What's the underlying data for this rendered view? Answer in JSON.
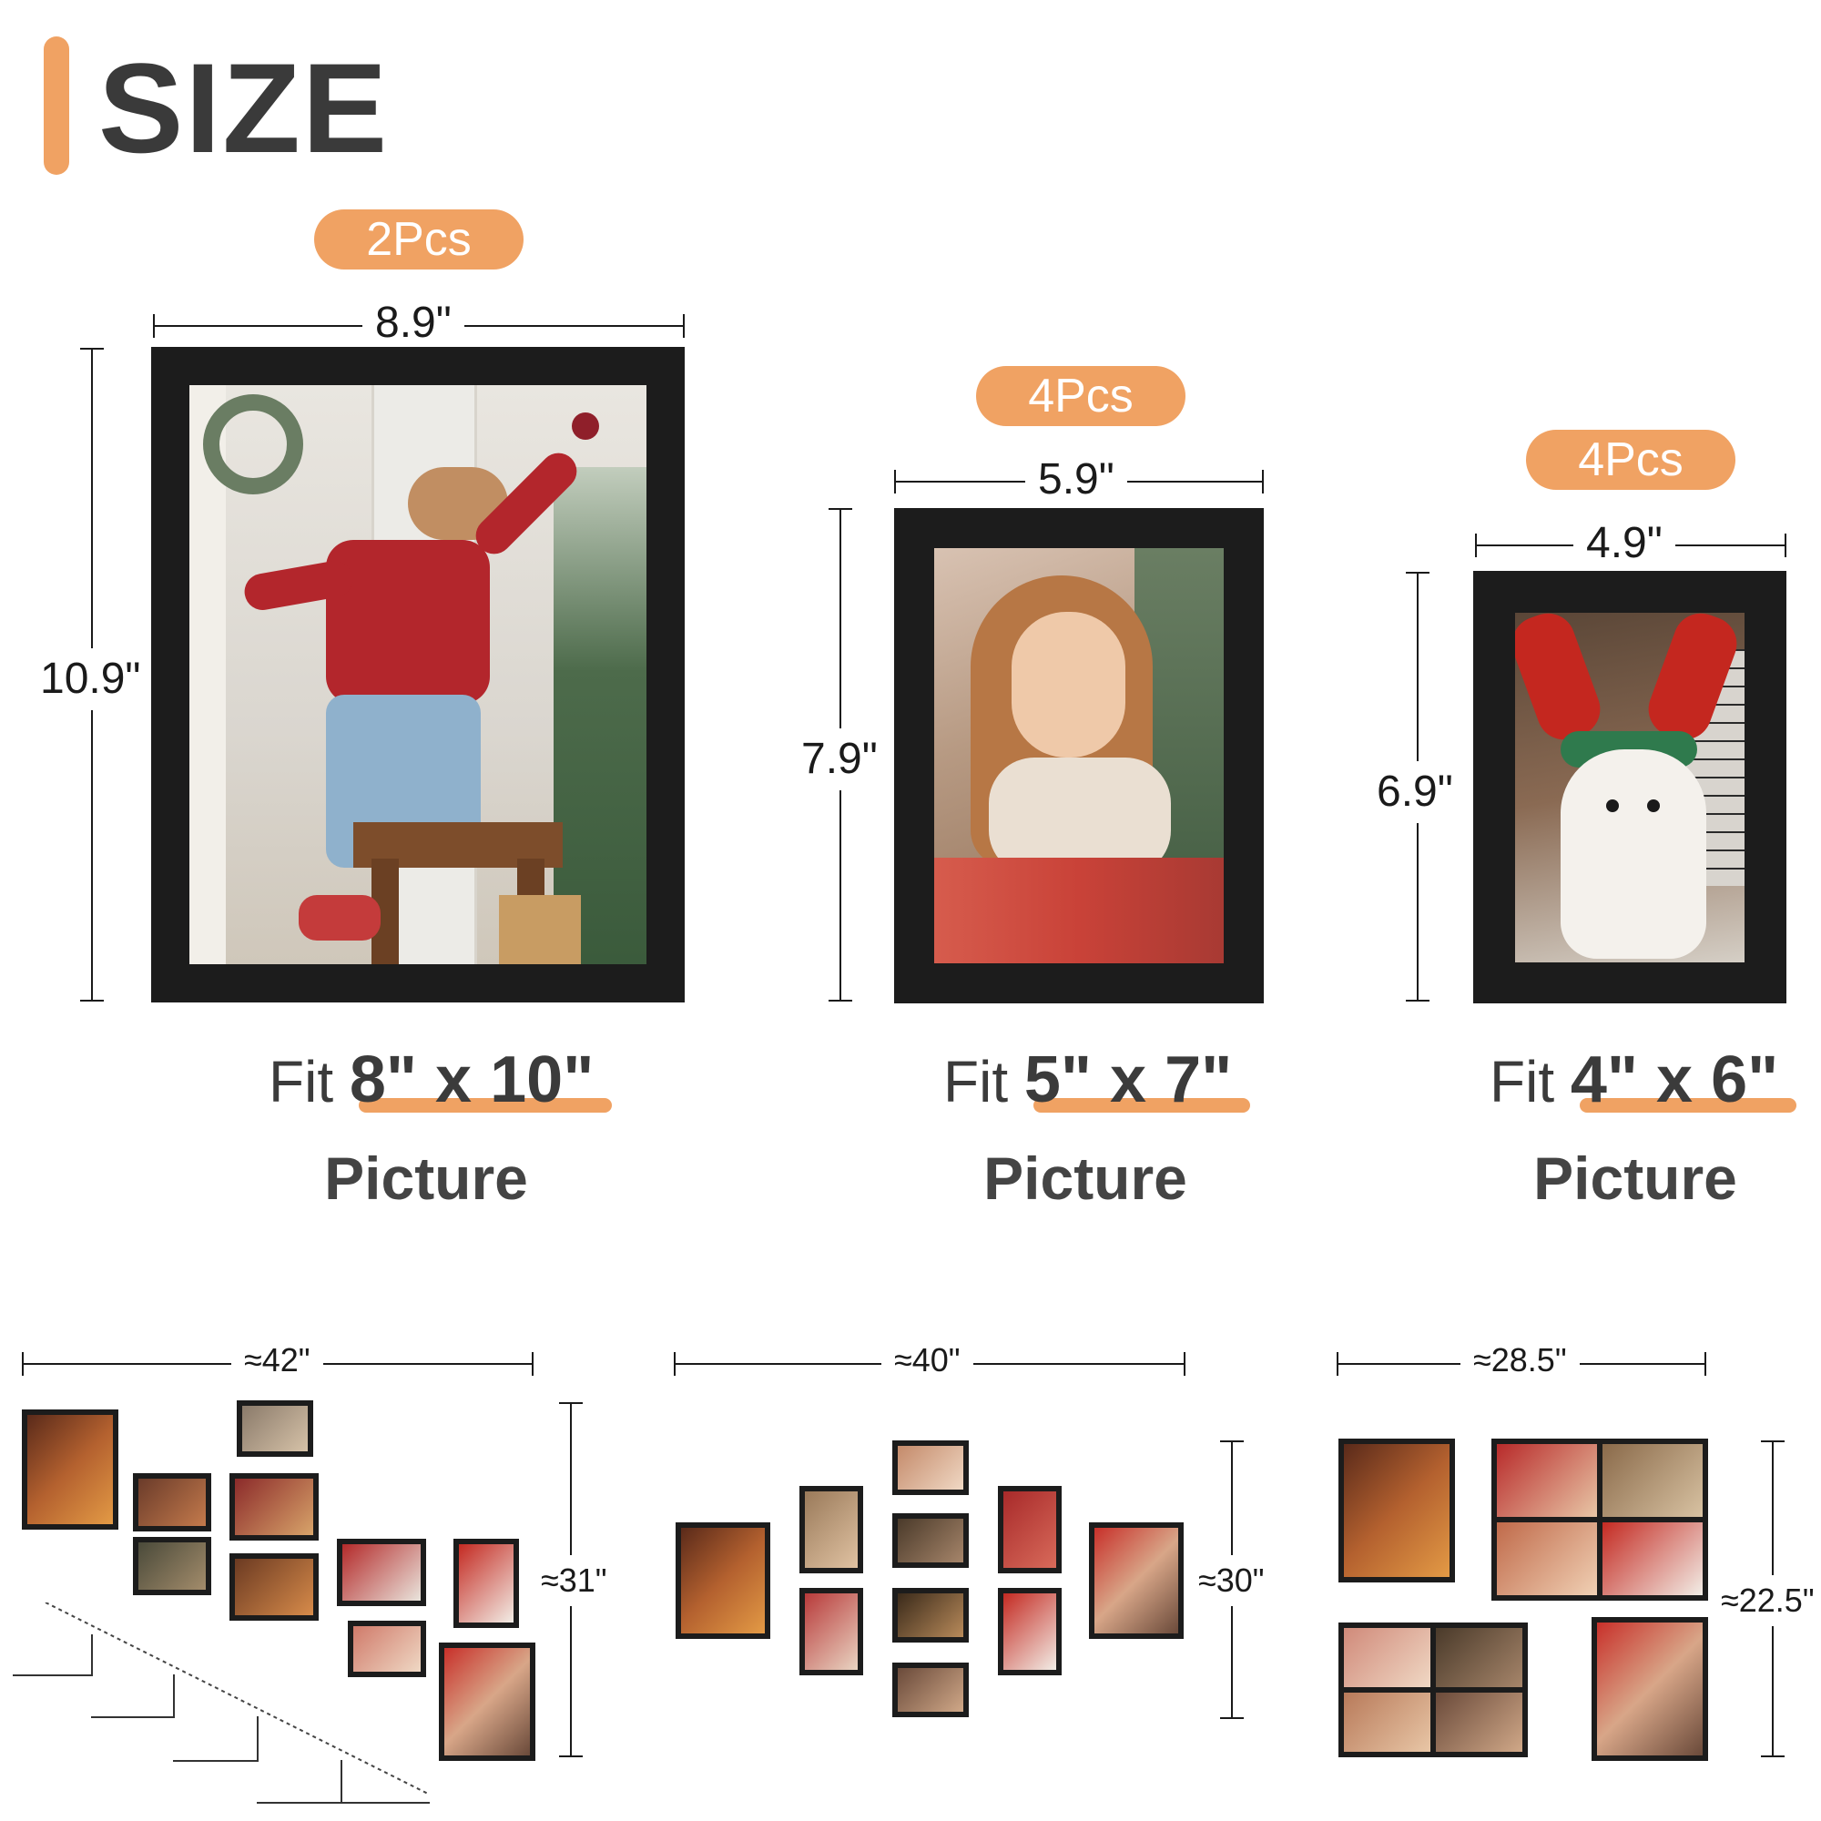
{
  "header": {
    "title": "SIZE",
    "accent": "#f0a263"
  },
  "frames": [
    {
      "qty": "2Pcs",
      "width": "8.9\"",
      "height": "10.9\"",
      "fit_word": "Fit",
      "fit_size": "8\" x 10\"",
      "caption": "Picture"
    },
    {
      "qty": "4Pcs",
      "width": "5.9\"",
      "height": "7.9\"",
      "fit_word": "Fit",
      "fit_size": "5\" x 7\"",
      "caption": "Picture"
    },
    {
      "qty": "4Pcs",
      "width": "4.9\"",
      "height": "6.9\"",
      "fit_word": "Fit",
      "fit_size": "4\" x 6\"",
      "caption": "Picture"
    }
  ],
  "layouts": [
    {
      "width": "≈42\"",
      "height": "≈31\""
    },
    {
      "width": "≈40\"",
      "height": "≈30\""
    },
    {
      "width": "≈28.5\"",
      "height": "≈22.5\""
    }
  ]
}
